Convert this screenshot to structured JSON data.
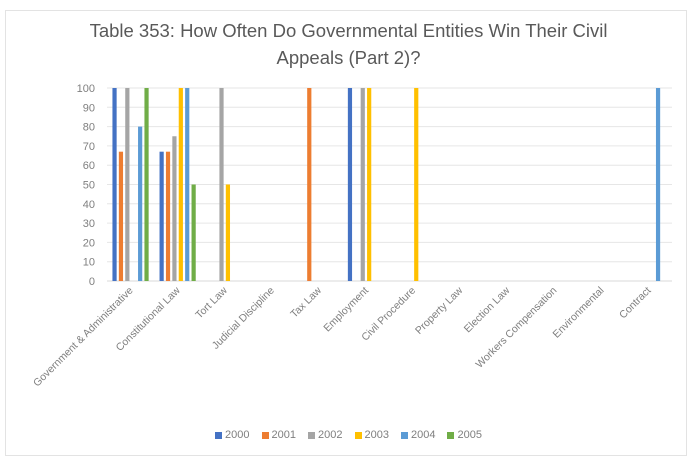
{
  "chart_data": {
    "type": "bar",
    "title": "Table 353: How Often Do Governmental Entities Win Their Civil Appeals (Part 2)?",
    "title_lines": [
      "Table 353: How Often Do Governmental Entities Win Their Civil",
      "Appeals (Part 2)?"
    ],
    "xlabel": "",
    "ylabel": "",
    "ylim": [
      0,
      100
    ],
    "yticks": [
      0,
      10,
      20,
      30,
      40,
      50,
      60,
      70,
      80,
      90,
      100
    ],
    "grid": true,
    "legend_position": "bottom",
    "categories": [
      "Government & Administrative",
      "Constitutional Law",
      "Tort Law",
      "Judicial Discipline",
      "Tax Law",
      "Employment",
      "Civil Procedure",
      "Property Law",
      "Election Law",
      "Workers Compensation",
      "Environmental",
      "Contract"
    ],
    "series": [
      {
        "name": "2000",
        "color": "#4472c4",
        "values": [
          100,
          67,
          0,
          0,
          0,
          100,
          0,
          0,
          0,
          0,
          0,
          0
        ]
      },
      {
        "name": "2001",
        "color": "#ed7d31",
        "values": [
          67,
          67,
          0,
          0,
          100,
          0,
          0,
          0,
          0,
          0,
          0,
          0
        ]
      },
      {
        "name": "2002",
        "color": "#a5a5a5",
        "values": [
          100,
          75,
          100,
          0,
          0,
          100,
          0,
          0,
          0,
          0,
          0,
          0
        ]
      },
      {
        "name": "2003",
        "color": "#ffc000",
        "values": [
          0,
          100,
          50,
          0,
          0,
          100,
          100,
          0,
          0,
          0,
          0,
          0
        ]
      },
      {
        "name": "2004",
        "color": "#5b9bd5",
        "values": [
          80,
          100,
          0,
          0,
          0,
          0,
          0,
          0,
          0,
          0,
          0,
          100
        ]
      },
      {
        "name": "2005",
        "color": "#70ad47",
        "values": [
          100,
          50,
          0,
          0,
          0,
          0,
          0,
          0,
          0,
          0,
          0,
          0
        ]
      }
    ]
  }
}
